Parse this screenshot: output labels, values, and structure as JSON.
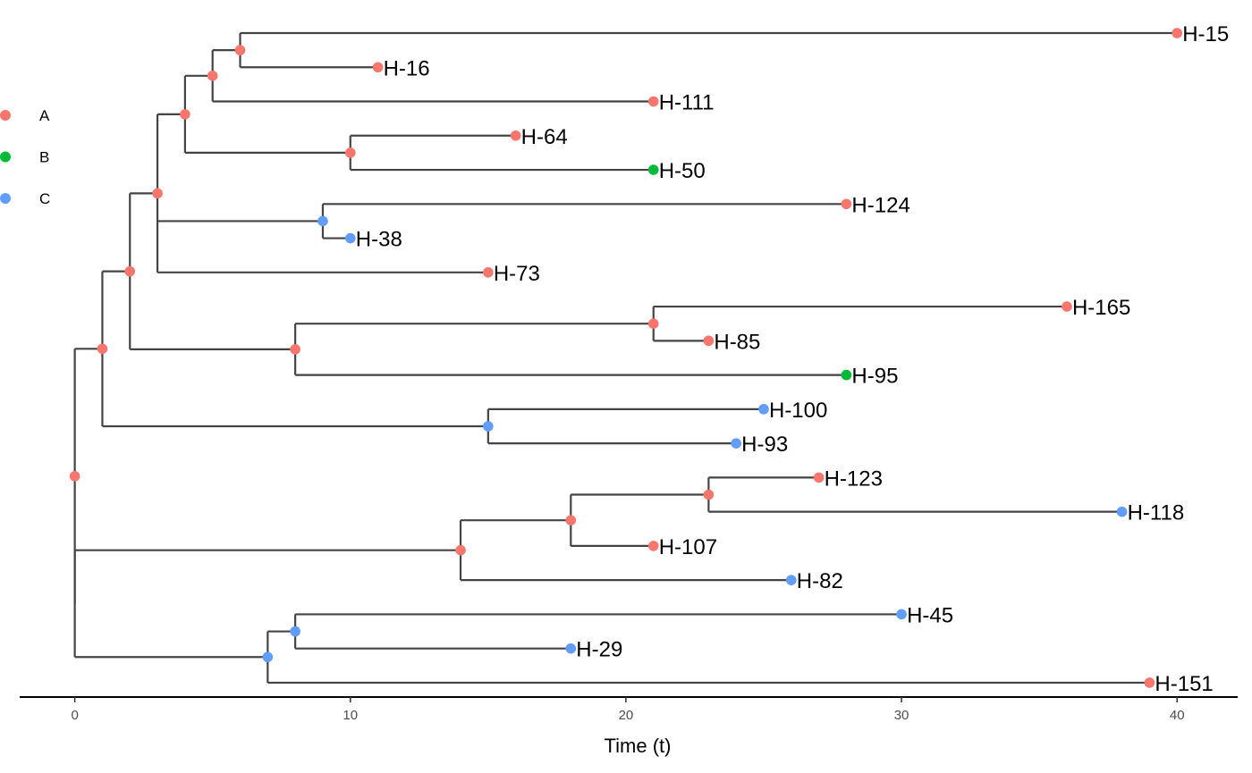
{
  "chart_data": {
    "type": "tree",
    "xlabel": "Time (t)",
    "xlim": [
      -2,
      42.2
    ],
    "xticks": [
      0,
      10,
      20,
      30,
      40
    ],
    "legend": {
      "position": "top-left",
      "entries": [
        {
          "label": "A",
          "color": "#F8766D"
        },
        {
          "label": "B",
          "color": "#00BA38"
        },
        {
          "label": "C",
          "color": "#619CFF"
        }
      ]
    },
    "tips": [
      {
        "label": "H-15",
        "time": 40,
        "group": "A"
      },
      {
        "label": "H-16",
        "time": 11,
        "group": "A"
      },
      {
        "label": "H-111",
        "time": 21,
        "group": "A"
      },
      {
        "label": "H-64",
        "time": 16,
        "group": "A"
      },
      {
        "label": "H-50",
        "time": 21,
        "group": "B"
      },
      {
        "label": "H-124",
        "time": 28,
        "group": "A"
      },
      {
        "label": "H-38",
        "time": 10,
        "group": "C"
      },
      {
        "label": "H-73",
        "time": 15,
        "group": "A"
      },
      {
        "label": "H-165",
        "time": 36,
        "group": "A"
      },
      {
        "label": "H-85",
        "time": 23,
        "group": "A"
      },
      {
        "label": "H-95",
        "time": 28,
        "group": "B"
      },
      {
        "label": "H-100",
        "time": 25,
        "group": "C"
      },
      {
        "label": "H-93",
        "time": 24,
        "group": "C"
      },
      {
        "label": "H-123",
        "time": 27,
        "group": "A"
      },
      {
        "label": "H-118",
        "time": 38,
        "group": "C"
      },
      {
        "label": "H-107",
        "time": 21,
        "group": "A"
      },
      {
        "label": "H-82",
        "time": 26,
        "group": "C"
      },
      {
        "label": "H-45",
        "time": 30,
        "group": "C"
      },
      {
        "label": "H-29",
        "time": 18,
        "group": "C"
      },
      {
        "label": "H-151",
        "time": 39,
        "group": "A"
      }
    ],
    "nodes": [
      {
        "id": "root",
        "time": 0,
        "group": "A",
        "children": [
          "n1",
          "n14"
        ]
      },
      {
        "id": "n1",
        "time": 1,
        "group": "A",
        "children": [
          "n2",
          "n12"
        ]
      },
      {
        "id": "n2",
        "time": 2,
        "group": "A",
        "children": [
          "n3",
          "n9"
        ]
      },
      {
        "id": "n3",
        "time": 3,
        "group": "A",
        "children": [
          "n4",
          "n8",
          "H-73"
        ]
      },
      {
        "id": "n4",
        "time": 4,
        "group": "A",
        "children": [
          "n5",
          "n7"
        ]
      },
      {
        "id": "n5",
        "time": 5,
        "group": "A",
        "children": [
          "n6",
          "H-111"
        ]
      },
      {
        "id": "n6",
        "time": 6,
        "group": "A",
        "children": [
          "H-15",
          "H-16"
        ]
      },
      {
        "id": "n7",
        "time": 10,
        "group": "A",
        "children": [
          "H-64",
          "H-50"
        ]
      },
      {
        "id": "n8",
        "time": 9,
        "group": "C",
        "children": [
          "H-124",
          "H-38"
        ]
      },
      {
        "id": "n9",
        "time": 8,
        "group": "A",
        "children": [
          "n10",
          "H-95"
        ]
      },
      {
        "id": "n10",
        "time": 21,
        "group": "A",
        "children": [
          "H-165",
          "H-85"
        ]
      },
      {
        "id": "n12",
        "time": 15,
        "group": "C",
        "children": [
          "H-100",
          "H-93"
        ]
      },
      {
        "id": "n14",
        "time": 0,
        "group": "A",
        "children": [
          "n15",
          "n18"
        ],
        "hidden": true
      },
      {
        "id": "n15",
        "time": 14,
        "group": "A",
        "children": [
          "n16",
          "H-82"
        ]
      },
      {
        "id": "n16",
        "time": 18,
        "group": "A",
        "children": [
          "n17",
          "H-107"
        ]
      },
      {
        "id": "n17",
        "time": 23,
        "group": "A",
        "children": [
          "H-123",
          "H-118"
        ]
      },
      {
        "id": "n18",
        "time": 7,
        "group": "C",
        "children": [
          "n19",
          "H-151"
        ]
      },
      {
        "id": "n19",
        "time": 8,
        "group": "C",
        "children": [
          "H-45",
          "H-29"
        ]
      }
    ]
  }
}
